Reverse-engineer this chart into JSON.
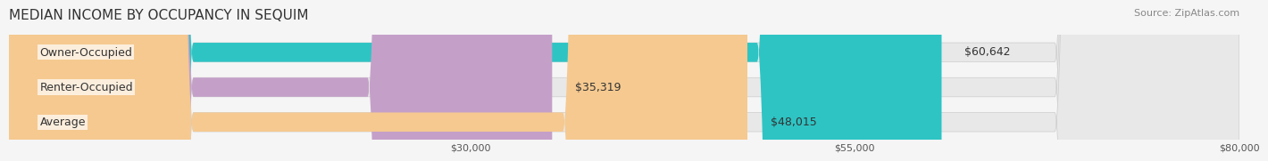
{
  "title": "MEDIAN INCOME BY OCCUPANCY IN SEQUIM",
  "source": "Source: ZipAtlas.com",
  "categories": [
    "Owner-Occupied",
    "Renter-Occupied",
    "Average"
  ],
  "values": [
    60642,
    35319,
    48015
  ],
  "labels": [
    "$60,642",
    "$35,319",
    "$48,015"
  ],
  "bar_colors": [
    "#2ec4c4",
    "#c4a0c8",
    "#f5c990"
  ],
  "bar_bg_color": "#e8e8e8",
  "xlim": [
    0,
    80000
  ],
  "xticks": [
    30000,
    55000,
    80000
  ],
  "xtick_labels": [
    "$30,000",
    "$55,000",
    "$80,000"
  ],
  "title_fontsize": 11,
  "source_fontsize": 8,
  "label_fontsize": 9,
  "category_fontsize": 9,
  "bar_height": 0.55,
  "background_color": "#f5f5f5"
}
